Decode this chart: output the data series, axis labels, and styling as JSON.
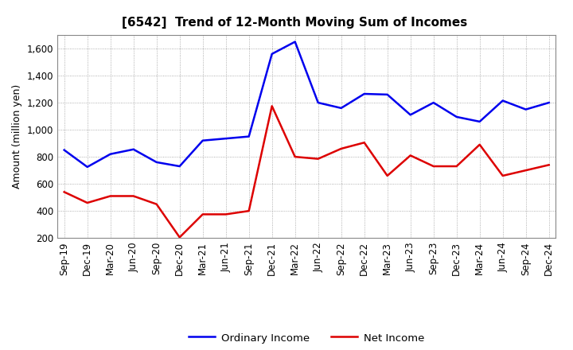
{
  "title": "[6542]  Trend of 12-Month Moving Sum of Incomes",
  "ylabel": "Amount (million yen)",
  "xlabels": [
    "Sep-19",
    "Dec-19",
    "Mar-20",
    "Jun-20",
    "Sep-20",
    "Dec-20",
    "Mar-21",
    "Jun-21",
    "Sep-21",
    "Dec-21",
    "Mar-22",
    "Jun-22",
    "Sep-22",
    "Dec-22",
    "Mar-23",
    "Jun-23",
    "Sep-23",
    "Dec-23",
    "Mar-24",
    "Jun-24",
    "Sep-24",
    "Dec-24"
  ],
  "ordinary_income": [
    850,
    725,
    820,
    855,
    760,
    730,
    920,
    935,
    950,
    1560,
    1650,
    1200,
    1160,
    1265,
    1260,
    1110,
    1200,
    1095,
    1060,
    1215,
    1150,
    1200
  ],
  "net_income": [
    540,
    460,
    510,
    510,
    450,
    205,
    375,
    375,
    400,
    1175,
    800,
    785,
    860,
    905,
    660,
    810,
    730,
    730,
    890,
    660,
    700,
    740
  ],
  "ordinary_color": "#0000ee",
  "net_color": "#dd0000",
  "ylim": [
    200,
    1700
  ],
  "yticks": [
    200,
    400,
    600,
    800,
    1000,
    1200,
    1400,
    1600
  ],
  "background_color": "#ffffff",
  "grid_color": "#999999",
  "legend_labels": [
    "Ordinary Income",
    "Net Income"
  ],
  "title_fontsize": 11,
  "axis_fontsize": 8.5,
  "ylabel_fontsize": 9
}
